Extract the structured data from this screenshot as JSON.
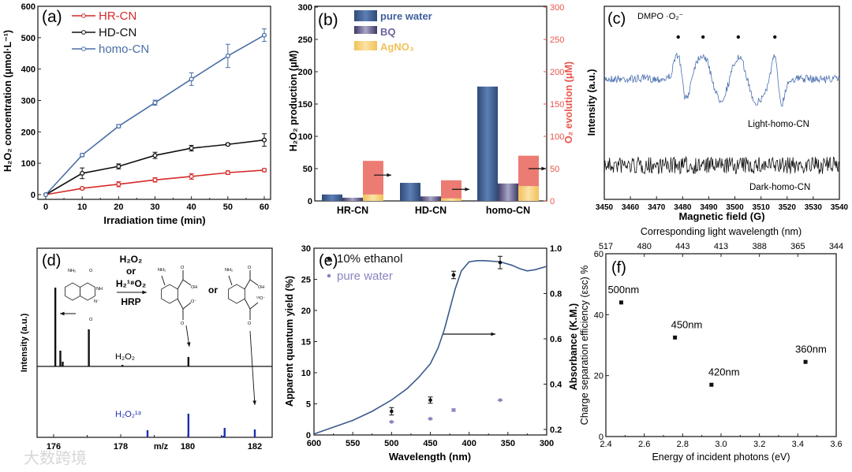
{
  "watermark": "大数跨境",
  "chart_data": [
    {
      "panel": "(a)",
      "type": "line",
      "xlabel": "Irradiation time (min)",
      "ylabel": "H₂O₂ concentration (μmol·L⁻¹)",
      "xlim": [
        0,
        60
      ],
      "ylim": [
        0,
        600
      ],
      "xticks": [
        "0",
        "10",
        "20",
        "30",
        "40",
        "50",
        "60"
      ],
      "yticks": [
        "0",
        "100",
        "200",
        "300",
        "400",
        "500",
        "600"
      ],
      "legend": "top-left",
      "x": [
        0,
        10,
        20,
        30,
        40,
        50,
        60
      ],
      "series": [
        {
          "name": "HR-CN",
          "color": "#d42a2a",
          "values": [
            0,
            20,
            33,
            47,
            58,
            70,
            78
          ],
          "errors": [
            0,
            4,
            8,
            7,
            9,
            6,
            5
          ]
        },
        {
          "name": "HD-CN",
          "color": "#111111",
          "values": [
            0,
            68,
            90,
            125,
            148,
            160,
            174
          ],
          "errors": [
            0,
            17,
            8,
            10,
            9,
            4,
            20
          ]
        },
        {
          "name": "homo-CN",
          "color": "#4a6fa5",
          "values": [
            0,
            126,
            218,
            293,
            368,
            442,
            508
          ],
          "errors": [
            0,
            5,
            5,
            8,
            20,
            37,
            20
          ]
        }
      ]
    },
    {
      "panel": "(b)",
      "type": "bar",
      "categories": [
        "HR-CN",
        "HD-CN",
        "homo-CN"
      ],
      "ylabel": "H₂O₂ production (μM)",
      "y2label": "O₂ evolution (μM)",
      "ylim": [
        0,
        300
      ],
      "y2lim": [
        0,
        300
      ],
      "yticks": [
        "0",
        "50",
        "100",
        "150",
        "200",
        "250",
        "300"
      ],
      "legend": "top-left",
      "series": [
        {
          "name": "pure water",
          "color": "#3f5f8f",
          "values": [
            10,
            28,
            177
          ]
        },
        {
          "name": "BQ",
          "color": "#5a5680",
          "values": [
            5,
            7,
            27
          ]
        },
        {
          "name": "AgNO₃",
          "color": "#f6cf7c",
          "values": [
            10,
            4,
            23
          ]
        },
        {
          "name": "O₂ evolution",
          "color": "#ec7c73",
          "axis": "right",
          "values": [
            62,
            32,
            70
          ]
        }
      ]
    },
    {
      "panel": "(c)",
      "type": "line",
      "title": "DMPO ·O₂⁻",
      "xlabel": "Magnetic field (G)",
      "ylabel": "Intensity (a.u.)",
      "xlim": [
        3450,
        3540
      ],
      "xticks": [
        "3450",
        "3460",
        "3470",
        "3480",
        "3490",
        "3500",
        "3510",
        "3520",
        "3530",
        "3540"
      ],
      "peaks": [
        3478,
        3487.5,
        3501,
        3515
      ],
      "series": [
        {
          "name": "Light-homo-CN",
          "color": "#4a70b0"
        },
        {
          "name": "Dark-homo-CN",
          "color": "#111111"
        }
      ]
    },
    {
      "panel": "(d)",
      "type": "bar",
      "xlabel": "m/z",
      "ylabel": "Intensity (a.u.)",
      "xlim": [
        175.7,
        182.5
      ],
      "xticks": [
        "176",
        "178",
        "180",
        "182"
      ],
      "reaction": {
        "reagent1": "H₂O₂",
        "or": "or",
        "reagent2": "H₂¹⁸O₂",
        "catalyst": "HRP",
        "or2": "or"
      },
      "atoms": {
        "nh2": "NH₂",
        "o": "O",
        "nh": "NH",
        "nminus": "N⁻",
        "oh": "OH",
        "ominus": "O⁻",
        "o18": "¹⁸O⁻"
      },
      "series": [
        {
          "name": "H₂O₂",
          "color": "#111111",
          "x": [
            176.05,
            176.2,
            176.27,
            177.05,
            178.05,
            180.02
          ],
          "values": [
            100,
            20,
            6,
            47,
            2,
            12
          ]
        },
        {
          "name": "H₂O₂¹⁸",
          "color": "#1f2fb0",
          "x": [
            178.8,
            180.02,
            181.05,
            181.1,
            182.0
          ],
          "values": [
            9,
            30,
            2,
            12,
            10
          ]
        }
      ]
    },
    {
      "panel": "(e)",
      "type": "scatter",
      "xlabel": "Wavelength (nm)",
      "ylabel": "Apparent quantum yield (%)",
      "y2label": "Absorbance (K.M.)",
      "xlim": [
        600,
        300
      ],
      "ylim": [
        0,
        30
      ],
      "y2lim": [
        0.18,
        1.0
      ],
      "xticks": [
        "600",
        "550",
        "500",
        "450",
        "400",
        "350",
        "300"
      ],
      "yticks": [
        "0",
        "5",
        "10",
        "15",
        "20",
        "25",
        "30"
      ],
      "y2ticks": [
        "0.2",
        "0.4",
        "0.6",
        "0.8",
        "1.0"
      ],
      "legend": "top-left",
      "series": [
        {
          "name": "10% ethanol",
          "color": "#111111",
          "x": [
            500,
            450,
            420,
            360
          ],
          "values": [
            3.8,
            5.6,
            25.7,
            27.7
          ],
          "errors": [
            0.6,
            0.5,
            0.6,
            1.0
          ]
        },
        {
          "name": "pure water",
          "color": "#8a84c0",
          "x": [
            500,
            450,
            420,
            360
          ],
          "values": [
            2.1,
            2.6,
            4.0,
            5.6
          ],
          "errors": [
            0.1,
            0.1,
            0.2,
            0.1
          ]
        },
        {
          "name": "absorbance",
          "color": "#3b5b8c",
          "axis": "right",
          "x": [
            600,
            575,
            550,
            525,
            500,
            480,
            465,
            450,
            440,
            432,
            425,
            418,
            410,
            400,
            390,
            380,
            360,
            345,
            335,
            325,
            315,
            300
          ],
          "values": [
            0.18,
            0.21,
            0.24,
            0.28,
            0.33,
            0.38,
            0.43,
            0.49,
            0.56,
            0.64,
            0.73,
            0.82,
            0.9,
            0.94,
            0.945,
            0.945,
            0.94,
            0.925,
            0.91,
            0.9,
            0.905,
            0.92
          ]
        }
      ]
    },
    {
      "panel": "(f)",
      "type": "scatter",
      "xlabel": "Energy of incident photons (eV)",
      "ylabel": "Charge separation efficiency (εsc) %",
      "x2label": "Corresponding light wavelength (nm)",
      "xlim": [
        2.4,
        3.6
      ],
      "ylim": [
        0,
        60
      ],
      "xticks": [
        "2.4",
        "2.6",
        "2.8",
        "3.0",
        "3.2",
        "3.4",
        "3.6"
      ],
      "yticks": [
        "0",
        "20",
        "40",
        "60"
      ],
      "x2ticks": [
        "517",
        "480",
        "443",
        "413",
        "388",
        "365",
        "344"
      ],
      "x": [
        2.48,
        2.76,
        2.95,
        3.44
      ],
      "values": [
        44,
        32.5,
        17,
        24.5
      ],
      "labels": [
        "500nm",
        "450nm",
        "420nm",
        "360nm"
      ]
    }
  ]
}
